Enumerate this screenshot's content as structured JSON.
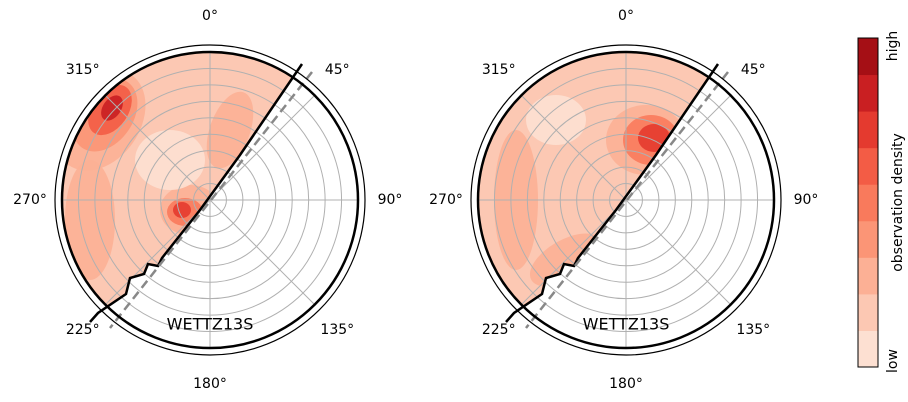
{
  "chart_data": [
    {
      "type": "polar-density",
      "station": "WETTZ13S",
      "angle_ticks": [
        {
          "value": 0,
          "label": "0°"
        },
        {
          "value": 45,
          "label": "45°"
        },
        {
          "value": 90,
          "label": "90°"
        },
        {
          "value": 135,
          "label": "135°"
        },
        {
          "value": 180,
          "label": "180°"
        },
        {
          "value": 225,
          "label": "225°"
        },
        {
          "value": 270,
          "label": "270°"
        },
        {
          "value": 315,
          "label": "315°"
        }
      ]
    },
    {
      "type": "polar-density",
      "station": "WETTZ13S",
      "angle_ticks": [
        {
          "value": 0,
          "label": "0°"
        },
        {
          "value": 45,
          "label": "45°"
        },
        {
          "value": 90,
          "label": "90°"
        },
        {
          "value": 135,
          "label": "135°"
        },
        {
          "value": 180,
          "label": "180°"
        },
        {
          "value": 225,
          "label": "225°"
        },
        {
          "value": 270,
          "label": "270°"
        },
        {
          "value": 315,
          "label": "315°"
        }
      ]
    }
  ],
  "colorbar": {
    "label": "observation density",
    "min_label": "low",
    "max_label": "high",
    "colors": [
      "#fde0d2",
      "#fcc8b3",
      "#fcb095",
      "#fb9576",
      "#f97a5c",
      "#f35c45",
      "#e43a2f",
      "#c91f22",
      "#a50f15"
    ]
  }
}
